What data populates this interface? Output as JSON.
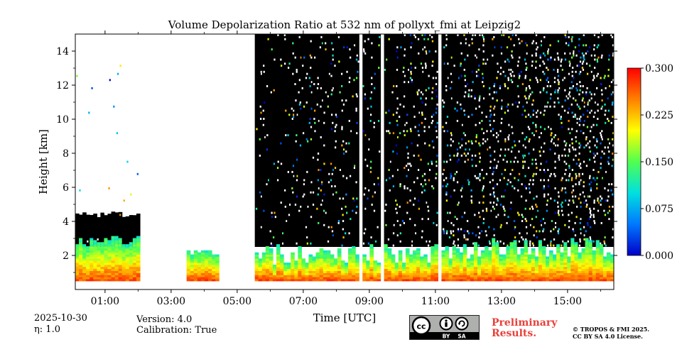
{
  "chart_data": {
    "type": "heatmap",
    "title": "Volume Depolarization Ratio at 532 nm of pollyxt_fmi at Leipzig2",
    "xlabel": "Time [UTC]",
    "ylabel": "Height [km]",
    "xlim": [
      0.1,
      16.4
    ],
    "ylim": [
      0,
      15
    ],
    "x_ticks": [
      1,
      3,
      5,
      7,
      9,
      11,
      13,
      15
    ],
    "x_tick_labels": [
      "01:00",
      "03:00",
      "05:00",
      "07:00",
      "09:00",
      "11:00",
      "13:00",
      "15:00"
    ],
    "y_ticks": [
      2,
      4,
      6,
      8,
      10,
      12,
      14
    ],
    "y_tick_labels": [
      "2",
      "4",
      "6",
      "8",
      "10",
      "12",
      "14"
    ],
    "colorbar": {
      "min": 0.0,
      "max": 0.3,
      "ticks": [
        "0.000",
        "0.075",
        "0.150",
        "0.225",
        "0.300"
      ],
      "colormap": [
        "#0000c8",
        "#0078ff",
        "#00e0e0",
        "#50ff50",
        "#ffff00",
        "#ff8000",
        "#ff0000"
      ]
    },
    "no_data_intervals_utc": [
      [
        2.1,
        3.5
      ],
      [
        4.5,
        5.5
      ],
      [
        8.7,
        8.8
      ],
      [
        9.3,
        9.4
      ],
      [
        11.05,
        11.15
      ]
    ],
    "low_layer": {
      "base_km": 0.5,
      "top_km": 2.5,
      "typical_ratio": 0.2
    }
  },
  "footer": {
    "date": "2025-10-30",
    "eta": "η: 1.0",
    "version": "Version: 4.0",
    "calibration": "Calibration: True",
    "license_badge_labels": [
      "BY",
      "SA"
    ],
    "preliminary_line1": "Preliminary",
    "preliminary_line2": "Results.",
    "copyright_line1": "© TROPOS & FMI 2025.",
    "copyright_line2": "CC BY SA 4.0 License."
  }
}
